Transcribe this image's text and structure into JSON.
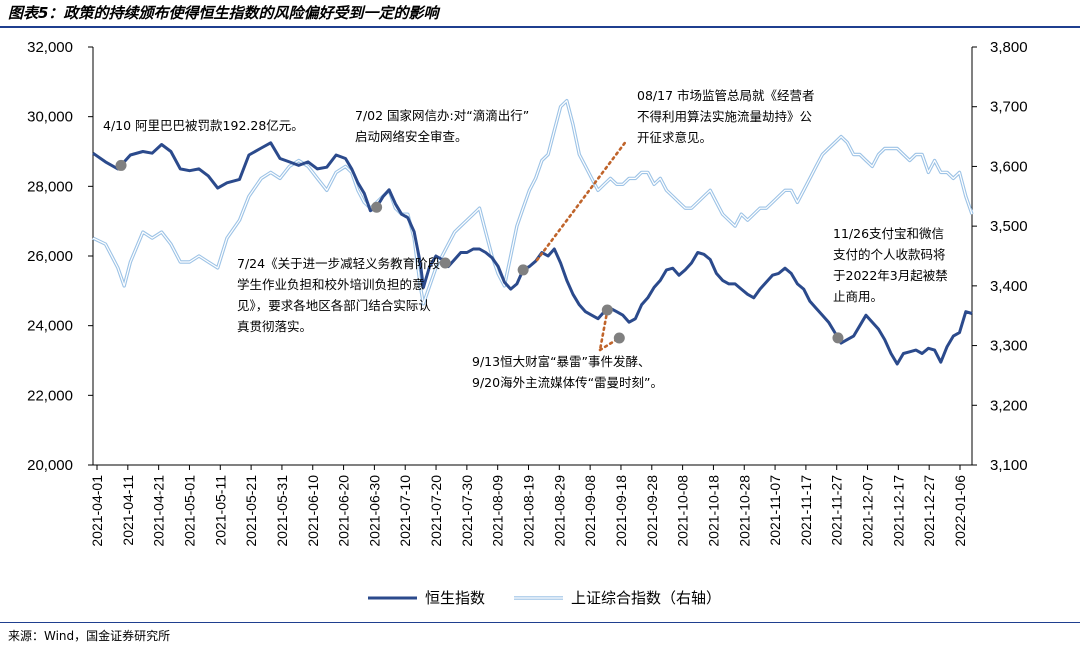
{
  "title": "图表5：政策的持续颁布使得恒生指数的风险偏好受到一定的影响",
  "source": "来源：Wind，国金证券研究所",
  "chart_data": {
    "type": "line",
    "left_axis": {
      "min": 20000,
      "max": 32000,
      "ticks": [
        "20,000",
        "22,000",
        "24,000",
        "26,000",
        "28,000",
        "30,000",
        "32,000"
      ]
    },
    "right_axis": {
      "min": 3100,
      "max": 3800,
      "ticks": [
        "3,100",
        "3,200",
        "3,300",
        "3,400",
        "3,500",
        "3,600",
        "3,700",
        "3,800"
      ]
    },
    "x_ticks": [
      "2021-04-01",
      "2021-04-11",
      "2021-04-21",
      "2021-05-01",
      "2021-05-11",
      "2021-05-21",
      "2021-05-31",
      "2021-06-10",
      "2021-06-20",
      "2021-06-30",
      "2021-07-10",
      "2021-07-20",
      "2021-07-30",
      "2021-08-09",
      "2021-08-19",
      "2021-08-29",
      "2021-09-08",
      "2021-09-18",
      "2021-09-28",
      "2021-10-08",
      "2021-10-18",
      "2021-10-28",
      "2021-11-07",
      "2021-11-17",
      "2021-11-27",
      "2021-12-07",
      "2021-12-17",
      "2021-12-27",
      "2022-01-06"
    ],
    "series": [
      {
        "name": "恒生指数",
        "axis": "left",
        "color": "#2b4a8c",
        "points": [
          [
            0,
            28950
          ],
          [
            4,
            28700
          ],
          [
            8,
            28500
          ],
          [
            10,
            28700
          ],
          [
            12,
            28900
          ],
          [
            16,
            29000
          ],
          [
            19,
            28950
          ],
          [
            22,
            29200
          ],
          [
            25,
            29000
          ],
          [
            28,
            28500
          ],
          [
            31,
            28450
          ],
          [
            34,
            28500
          ],
          [
            37,
            28300
          ],
          [
            40,
            27950
          ],
          [
            43,
            28100
          ],
          [
            47,
            28200
          ],
          [
            50,
            28900
          ],
          [
            54,
            29100
          ],
          [
            57,
            29250
          ],
          [
            60,
            28800
          ],
          [
            63,
            28700
          ],
          [
            66,
            28600
          ],
          [
            69,
            28700
          ],
          [
            72,
            28500
          ],
          [
            75,
            28550
          ],
          [
            78,
            28900
          ],
          [
            81,
            28800
          ],
          [
            83,
            28500
          ],
          [
            85,
            28100
          ],
          [
            87,
            27800
          ],
          [
            89,
            27300
          ],
          [
            91,
            27400
          ],
          [
            93,
            27700
          ],
          [
            95,
            27900
          ],
          [
            97,
            27500
          ],
          [
            99,
            27200
          ],
          [
            101,
            27100
          ],
          [
            103,
            26700
          ],
          [
            105,
            25800
          ],
          [
            106,
            25100
          ],
          [
            108,
            25700
          ],
          [
            110,
            26000
          ],
          [
            112,
            25900
          ],
          [
            114,
            25700
          ],
          [
            116,
            25900
          ],
          [
            118,
            26100
          ],
          [
            120,
            26100
          ],
          [
            122,
            26200
          ],
          [
            124,
            26200
          ],
          [
            126,
            26100
          ],
          [
            128,
            25950
          ],
          [
            130,
            25700
          ],
          [
            132,
            25250
          ],
          [
            134,
            25050
          ],
          [
            136,
            25200
          ],
          [
            138,
            25600
          ],
          [
            140,
            25700
          ],
          [
            142,
            25850
          ],
          [
            144,
            26100
          ],
          [
            146,
            26000
          ],
          [
            148,
            26200
          ],
          [
            150,
            25800
          ],
          [
            152,
            25300
          ],
          [
            154,
            24900
          ],
          [
            156,
            24600
          ],
          [
            158,
            24400
          ],
          [
            160,
            24300
          ],
          [
            162,
            24200
          ],
          [
            164,
            24400
          ],
          [
            166,
            24500
          ],
          [
            168,
            24400
          ],
          [
            170,
            24300
          ],
          [
            172,
            24100
          ],
          [
            174,
            24200
          ],
          [
            176,
            24600
          ],
          [
            178,
            24800
          ],
          [
            180,
            25100
          ],
          [
            182,
            25300
          ],
          [
            184,
            25600
          ],
          [
            186,
            25650
          ],
          [
            188,
            25450
          ],
          [
            190,
            25600
          ],
          [
            192,
            25800
          ],
          [
            194,
            26100
          ],
          [
            196,
            26050
          ],
          [
            198,
            25900
          ],
          [
            200,
            25500
          ],
          [
            202,
            25300
          ],
          [
            204,
            25200
          ],
          [
            206,
            25200
          ],
          [
            208,
            25050
          ],
          [
            210,
            24900
          ],
          [
            212,
            24800
          ],
          [
            214,
            25050
          ],
          [
            216,
            25250
          ],
          [
            218,
            25450
          ],
          [
            220,
            25500
          ],
          [
            222,
            25650
          ],
          [
            224,
            25500
          ],
          [
            226,
            25200
          ],
          [
            228,
            25050
          ],
          [
            230,
            24700
          ],
          [
            232,
            24500
          ],
          [
            234,
            24300
          ],
          [
            236,
            24100
          ],
          [
            238,
            23800
          ],
          [
            240,
            23500
          ],
          [
            242,
            23600
          ],
          [
            244,
            23700
          ],
          [
            246,
            24000
          ],
          [
            248,
            24300
          ],
          [
            250,
            24100
          ],
          [
            252,
            23900
          ],
          [
            254,
            23600
          ],
          [
            256,
            23200
          ],
          [
            258,
            22900
          ],
          [
            260,
            23200
          ],
          [
            262,
            23250
          ],
          [
            264,
            23300
          ],
          [
            266,
            23200
          ],
          [
            268,
            23350
          ],
          [
            270,
            23300
          ],
          [
            272,
            22950
          ],
          [
            274,
            23400
          ],
          [
            276,
            23700
          ],
          [
            278,
            23800
          ],
          [
            280,
            24400
          ],
          [
            282,
            24350
          ]
        ]
      },
      {
        "name": "上证综合指数（右轴）",
        "axis": "right",
        "color": "#9dc3e6",
        "points": [
          [
            0,
            3480
          ],
          [
            4,
            3470
          ],
          [
            8,
            3430
          ],
          [
            10,
            3400
          ],
          [
            12,
            3440
          ],
          [
            16,
            3490
          ],
          [
            19,
            3480
          ],
          [
            22,
            3490
          ],
          [
            25,
            3470
          ],
          [
            28,
            3440
          ],
          [
            31,
            3440
          ],
          [
            34,
            3450
          ],
          [
            37,
            3440
          ],
          [
            40,
            3430
          ],
          [
            43,
            3480
          ],
          [
            47,
            3510
          ],
          [
            50,
            3550
          ],
          [
            54,
            3580
          ],
          [
            57,
            3590
          ],
          [
            60,
            3580
          ],
          [
            63,
            3600
          ],
          [
            66,
            3610
          ],
          [
            69,
            3600
          ],
          [
            72,
            3580
          ],
          [
            75,
            3560
          ],
          [
            78,
            3590
          ],
          [
            81,
            3600
          ],
          [
            83,
            3590
          ],
          [
            85,
            3560
          ],
          [
            87,
            3540
          ],
          [
            89,
            3530
          ],
          [
            91,
            3540
          ],
          [
            93,
            3550
          ],
          [
            95,
            3560
          ],
          [
            97,
            3530
          ],
          [
            99,
            3520
          ],
          [
            101,
            3520
          ],
          [
            103,
            3480
          ],
          [
            105,
            3400
          ],
          [
            106,
            3370
          ],
          [
            108,
            3400
          ],
          [
            110,
            3430
          ],
          [
            112,
            3450
          ],
          [
            114,
            3470
          ],
          [
            116,
            3490
          ],
          [
            118,
            3500
          ],
          [
            120,
            3510
          ],
          [
            122,
            3520
          ],
          [
            124,
            3530
          ],
          [
            126,
            3490
          ],
          [
            128,
            3450
          ],
          [
            130,
            3420
          ],
          [
            132,
            3400
          ],
          [
            134,
            3450
          ],
          [
            136,
            3500
          ],
          [
            138,
            3530
          ],
          [
            140,
            3560
          ],
          [
            142,
            3580
          ],
          [
            144,
            3610
          ],
          [
            146,
            3620
          ],
          [
            148,
            3660
          ],
          [
            150,
            3700
          ],
          [
            152,
            3710
          ],
          [
            154,
            3670
          ],
          [
            156,
            3620
          ],
          [
            158,
            3600
          ],
          [
            160,
            3580
          ],
          [
            162,
            3560
          ],
          [
            164,
            3570
          ],
          [
            166,
            3580
          ],
          [
            168,
            3570
          ],
          [
            170,
            3570
          ],
          [
            172,
            3580
          ],
          [
            174,
            3580
          ],
          [
            176,
            3590
          ],
          [
            178,
            3590
          ],
          [
            180,
            3570
          ],
          [
            182,
            3580
          ],
          [
            184,
            3560
          ],
          [
            186,
            3550
          ],
          [
            188,
            3540
          ],
          [
            190,
            3530
          ],
          [
            192,
            3530
          ],
          [
            194,
            3540
          ],
          [
            196,
            3550
          ],
          [
            198,
            3560
          ],
          [
            200,
            3540
          ],
          [
            202,
            3520
          ],
          [
            204,
            3510
          ],
          [
            206,
            3500
          ],
          [
            208,
            3520
          ],
          [
            210,
            3510
          ],
          [
            212,
            3520
          ],
          [
            214,
            3530
          ],
          [
            216,
            3530
          ],
          [
            218,
            3540
          ],
          [
            220,
            3550
          ],
          [
            222,
            3560
          ],
          [
            224,
            3560
          ],
          [
            226,
            3540
          ],
          [
            228,
            3560
          ],
          [
            230,
            3580
          ],
          [
            232,
            3600
          ],
          [
            234,
            3620
          ],
          [
            236,
            3630
          ],
          [
            238,
            3640
          ],
          [
            240,
            3650
          ],
          [
            242,
            3640
          ],
          [
            244,
            3620
          ],
          [
            246,
            3620
          ],
          [
            248,
            3610
          ],
          [
            250,
            3600
          ],
          [
            252,
            3620
          ],
          [
            254,
            3630
          ],
          [
            256,
            3630
          ],
          [
            258,
            3630
          ],
          [
            260,
            3620
          ],
          [
            262,
            3610
          ],
          [
            264,
            3620
          ],
          [
            266,
            3620
          ],
          [
            268,
            3590
          ],
          [
            270,
            3610
          ],
          [
            272,
            3590
          ],
          [
            274,
            3590
          ],
          [
            276,
            3580
          ],
          [
            278,
            3590
          ],
          [
            280,
            3550
          ],
          [
            282,
            3520
          ]
        ]
      }
    ],
    "x_index_max": 282,
    "annotations": [
      {
        "lines": [
          "4/10 阿里巴巴被罚款192.28亿元。"
        ],
        "marker_index": 9,
        "marker_series": 0
      },
      {
        "lines": [
          "7/02 国家网信办:对“滴滴出行”",
          "启动网络安全审查。"
        ],
        "marker_index": 91,
        "marker_series": 0
      },
      {
        "lines": [
          "7/24《关于进一步减轻义务教育阶段",
          "学生作业负担和校外培训负担的意",
          "见》，要求各地区各部门结合实际认",
          "真贯彻落实。"
        ],
        "marker_index": 113,
        "marker_series": 0
      },
      {
        "lines": [
          "08/17 市场监管总局就《经营者",
          "不得利用算法实施流量劫持》公",
          "开征求意见。"
        ],
        "marker_index": 138,
        "marker_series": 0
      },
      {
        "lines": [
          "9/13恒大财富“暴雷”事件发酵、",
          "9/20海外主流媒体传“雷曼时刻”。"
        ],
        "marker_index": 165,
        "marker_series": 0
      },
      {
        "lines": [
          "11/26支付宝和微信",
          "支付的个人收款码将",
          "于2022年3月起被禁",
          "止商用。"
        ],
        "marker_index": 239,
        "marker_series": 0
      }
    ],
    "legend": {
      "position": "bottom"
    }
  }
}
